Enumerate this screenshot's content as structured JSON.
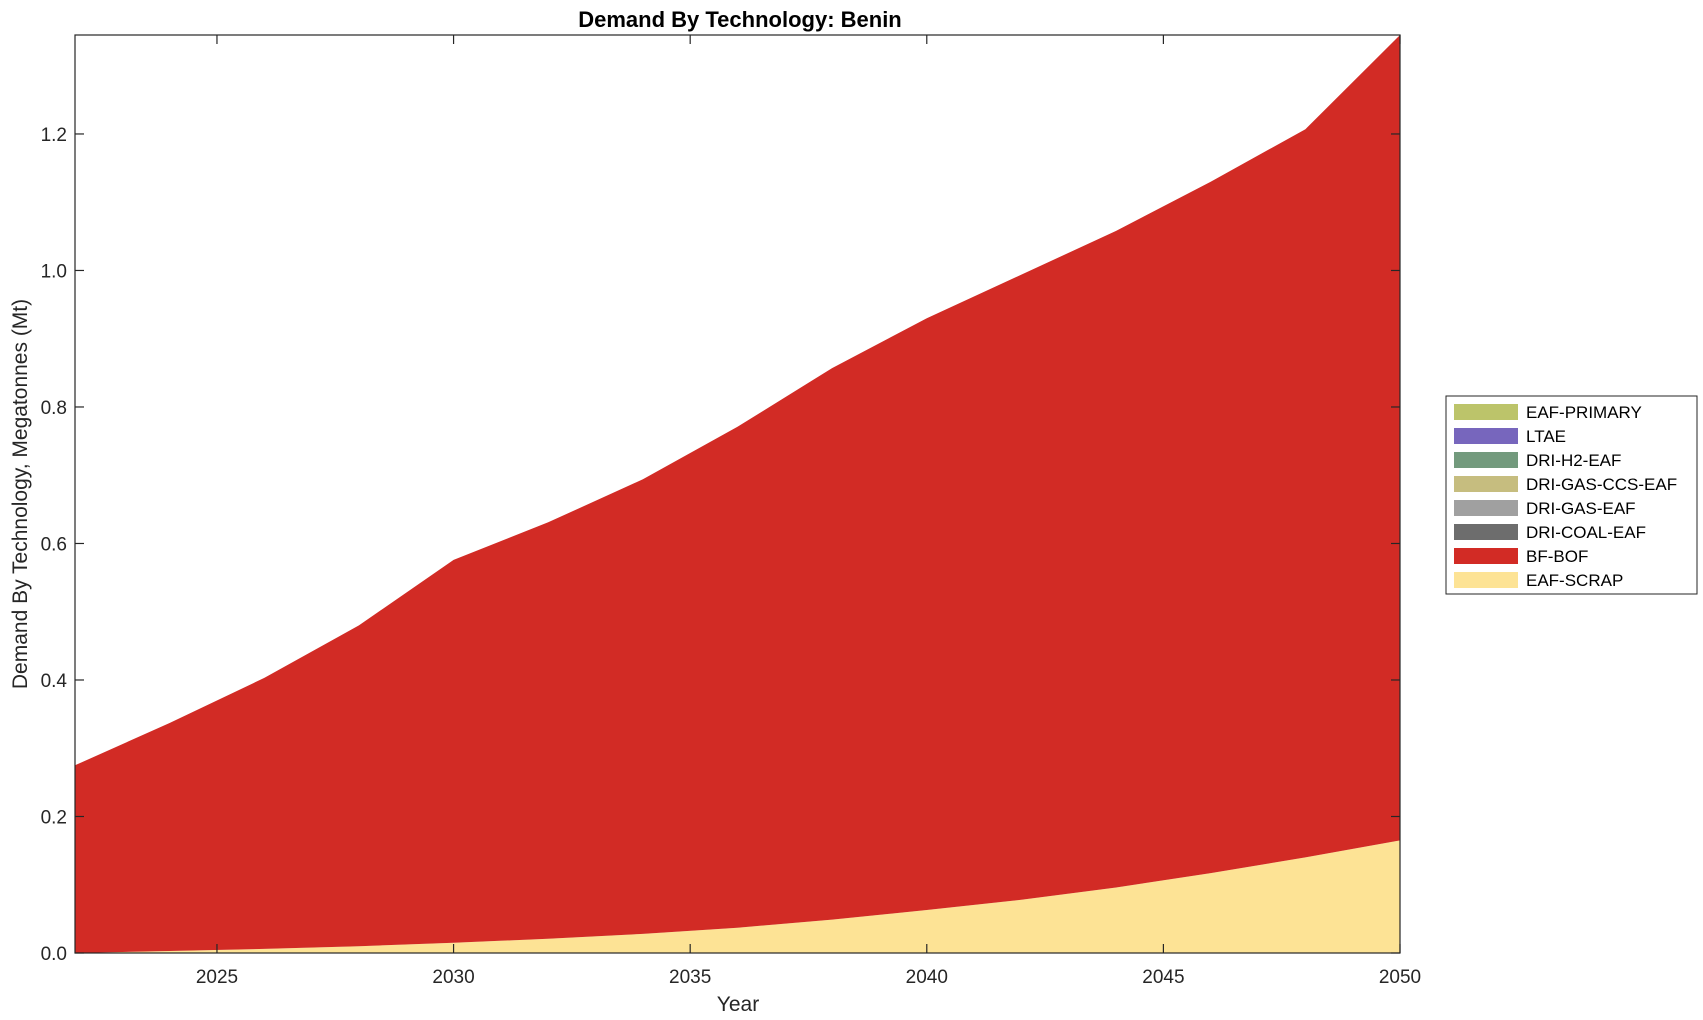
{
  "chart_data": {
    "type": "area",
    "stacked": true,
    "title": "Demand By Technology: Benin",
    "xlabel": "Year",
    "ylabel": "Demand By Technology, Megatonnes (Mt)",
    "xlim": [
      2022,
      2050
    ],
    "ylim": [
      0,
      1.345
    ],
    "xticks": [
      2025,
      2030,
      2035,
      2040,
      2045,
      2050
    ],
    "yticks": [
      0.0,
      0.2,
      0.4,
      0.6,
      0.8,
      1.0,
      1.2
    ],
    "ytick_labels": [
      "0.0",
      "0.2",
      "0.4",
      "0.6",
      "0.8",
      "1.0",
      "1.2"
    ],
    "grid": false,
    "legend_position": "right",
    "x": [
      2022,
      2024,
      2026,
      2028,
      2030,
      2032,
      2034,
      2036,
      2038,
      2040,
      2042,
      2044,
      2046,
      2048,
      2050
    ],
    "series": [
      {
        "name": "EAF-SCRAP",
        "color": "#fde395",
        "values": [
          0.0,
          0.003,
          0.006,
          0.01,
          0.015,
          0.021,
          0.028,
          0.037,
          0.049,
          0.063,
          0.078,
          0.096,
          0.117,
          0.14,
          0.165
        ]
      },
      {
        "name": "BF-BOF",
        "color": "#d22b25",
        "values": [
          0.275,
          0.334,
          0.397,
          0.47,
          0.561,
          0.61,
          0.666,
          0.734,
          0.808,
          0.867,
          0.916,
          0.962,
          1.013,
          1.067,
          1.18
        ]
      },
      {
        "name": "DRI-COAL-EAF",
        "color": "#6d6d6d",
        "values": [
          0,
          0,
          0,
          0,
          0,
          0,
          0,
          0,
          0,
          0,
          0,
          0,
          0,
          0,
          0
        ]
      },
      {
        "name": "DRI-GAS-EAF",
        "color": "#a0a0a0",
        "values": [
          0,
          0,
          0,
          0,
          0,
          0,
          0,
          0,
          0,
          0,
          0,
          0,
          0,
          0,
          0
        ]
      },
      {
        "name": "DRI-GAS-CCS-EAF",
        "color": "#c6bd7f",
        "values": [
          0,
          0,
          0,
          0,
          0,
          0,
          0,
          0,
          0,
          0,
          0,
          0,
          0,
          0,
          0
        ]
      },
      {
        "name": "DRI-H2-EAF",
        "color": "#739a7d",
        "values": [
          0,
          0,
          0,
          0,
          0,
          0,
          0,
          0,
          0,
          0,
          0,
          0,
          0,
          0,
          0
        ]
      },
      {
        "name": "LTAE",
        "color": "#7766bd",
        "values": [
          0,
          0,
          0,
          0,
          0,
          0,
          0,
          0,
          0,
          0,
          0,
          0,
          0,
          0,
          0
        ]
      },
      {
        "name": "EAF-PRIMARY",
        "color": "#bcc46a",
        "values": [
          0,
          0,
          0,
          0,
          0,
          0,
          0,
          0,
          0,
          0,
          0,
          0,
          0,
          0,
          0
        ]
      }
    ],
    "legend_order": [
      "EAF-PRIMARY",
      "LTAE",
      "DRI-H2-EAF",
      "DRI-GAS-CCS-EAF",
      "DRI-GAS-EAF",
      "DRI-COAL-EAF",
      "BF-BOF",
      "EAF-SCRAP"
    ]
  }
}
